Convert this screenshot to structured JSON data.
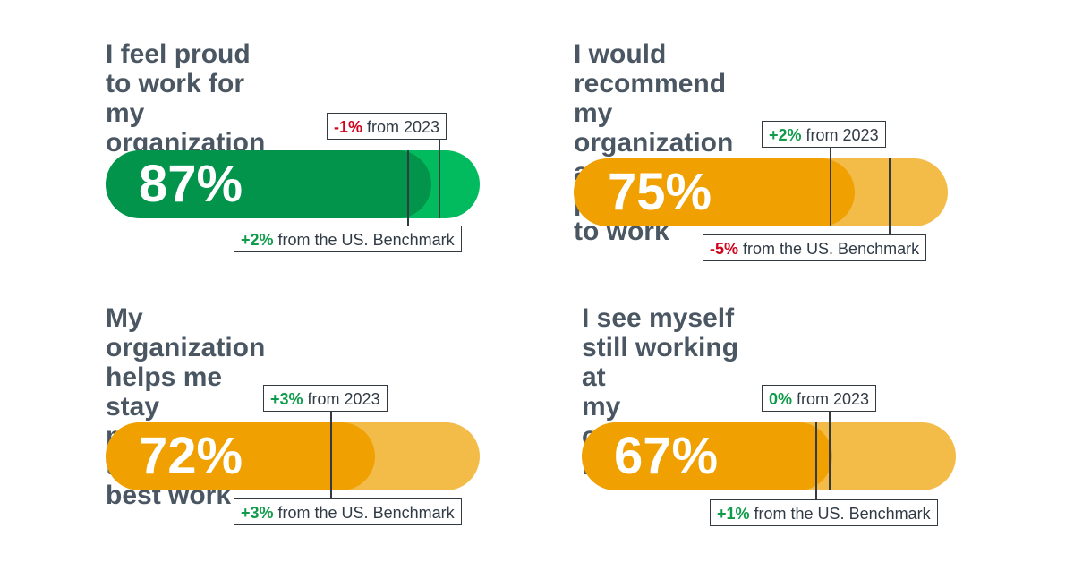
{
  "chart_data": [
    {
      "type": "bar",
      "title": "I feel proud to work for my\norganization",
      "value": 87,
      "value_label": "87%",
      "year_change": "-1%",
      "year_text": " from 2023",
      "benchmark_change": "+2%",
      "benchmark_text": " from the US. Benchmark",
      "colors": {
        "fill": "#03944c",
        "track": "#02bb5e"
      }
    },
    {
      "type": "bar",
      "title": "I would recommend my\norganization as a great place\nto work",
      "value": 75,
      "value_label": "75%",
      "year_change": "+2%",
      "year_text": " from 2023",
      "benchmark_change": "-5%",
      "benchmark_text": " from the US. Benchmark",
      "colors": {
        "fill": "#f0a000",
        "track": "#f3bb48"
      }
    },
    {
      "type": "bar",
      "title": "My organization helps me\nstay motivated to do my\nbest work",
      "value": 72,
      "value_label": "72%",
      "year_change": "+3%",
      "year_text": " from 2023",
      "benchmark_change": "+3%",
      "benchmark_text": " from the US. Benchmark",
      "colors": {
        "fill": "#f0a000",
        "track": "#f3bb48"
      }
    },
    {
      "type": "bar",
      "title": "I see myself still working at\nmy organization in two years",
      "value": 67,
      "value_label": "67%",
      "year_change": "0%",
      "year_text": " from 2023",
      "benchmark_change": "+1%",
      "benchmark_text": " from the US. Benchmark",
      "colors": {
        "fill": "#f0a000",
        "track": "#f3bb48"
      }
    }
  ]
}
